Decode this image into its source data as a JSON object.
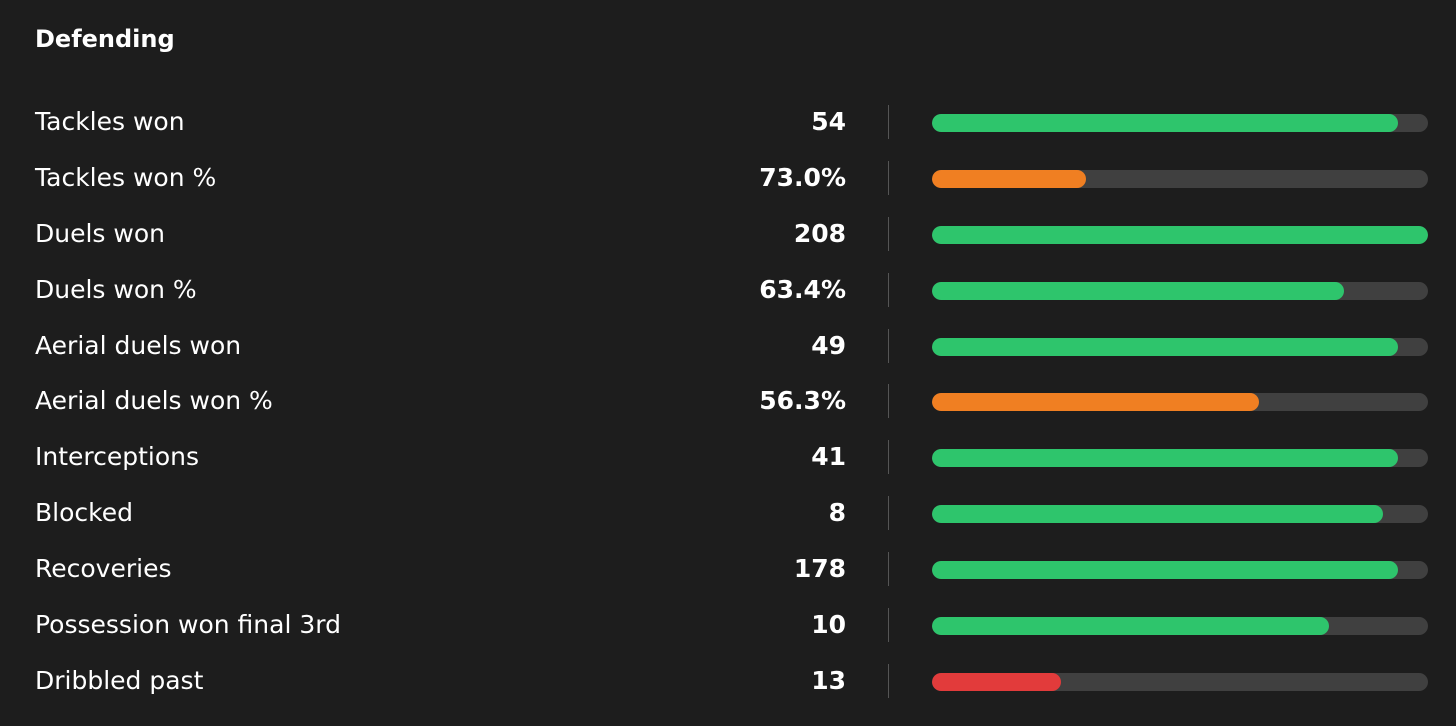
{
  "section": {
    "title": "Defending"
  },
  "colors": {
    "background": "#1d1d1d",
    "track": "#404040",
    "good": "#2ec56c",
    "average": "#f07f22",
    "poor": "#e23b3b"
  },
  "stats": [
    {
      "label": "Tackles won",
      "value": "54",
      "percentile": 0.94,
      "rating": "good"
    },
    {
      "label": "Tackles won %",
      "value": "73.0%",
      "percentile": 0.31,
      "rating": "average"
    },
    {
      "label": "Duels won",
      "value": "208",
      "percentile": 1.0,
      "rating": "good"
    },
    {
      "label": "Duels won %",
      "value": "63.4%",
      "percentile": 0.83,
      "rating": "good"
    },
    {
      "label": "Aerial duels won",
      "value": "49",
      "percentile": 0.94,
      "rating": "good"
    },
    {
      "label": "Aerial duels won %",
      "value": "56.3%",
      "percentile": 0.66,
      "rating": "average"
    },
    {
      "label": "Interceptions",
      "value": "41",
      "percentile": 0.94,
      "rating": "good"
    },
    {
      "label": "Blocked",
      "value": "8",
      "percentile": 0.91,
      "rating": "good"
    },
    {
      "label": "Recoveries",
      "value": "178",
      "percentile": 0.94,
      "rating": "good"
    },
    {
      "label": "Possession won final 3rd",
      "value": "10",
      "percentile": 0.8,
      "rating": "good"
    },
    {
      "label": "Dribbled past",
      "value": "13",
      "percentile": 0.26,
      "rating": "poor"
    }
  ]
}
